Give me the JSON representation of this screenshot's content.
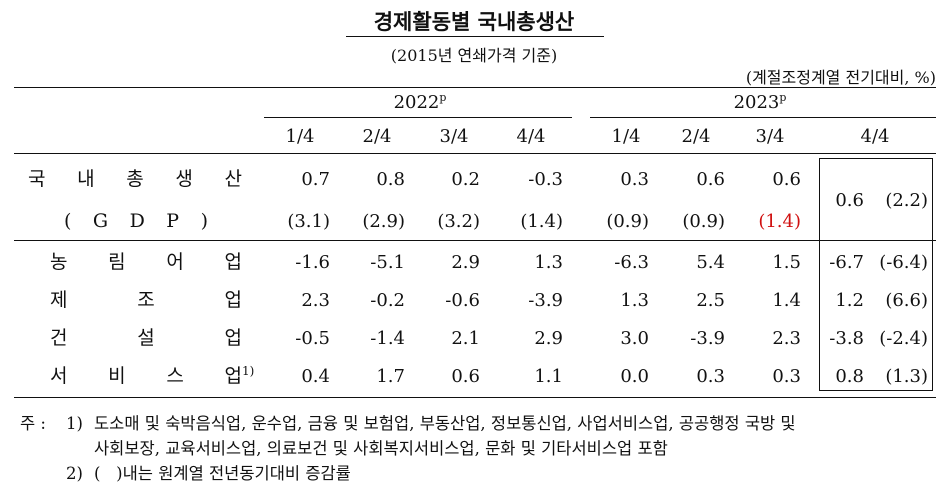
{
  "title": "경제활동별 국내총생산",
  "subtitle": "(2015년 연쇄가격 기준)",
  "unit": "(계절조정계열 전기대비, %)",
  "years": [
    {
      "label": "2022",
      "mark": "p"
    },
    {
      "label": "2023",
      "mark": "p"
    }
  ],
  "quarters": [
    "1/4",
    "2/4",
    "3/4",
    "4/4",
    "1/4",
    "2/4",
    "3/4",
    "4/4"
  ],
  "gdp": {
    "label_line1": [
      "국",
      "내",
      "총",
      "생",
      "산"
    ],
    "label_line2": [
      "(",
      "G",
      "D",
      "P",
      ")"
    ],
    "values": [
      "0.7",
      "0.8",
      "0.2",
      "-0.3",
      "0.3",
      "0.6",
      "0.6"
    ],
    "yoy": [
      "(3.1)",
      "(2.9)",
      "(3.2)",
      "(1.4)",
      "(0.9)",
      "(0.9)",
      "(1.4)"
    ],
    "latest_value": "0.6",
    "latest_yoy": "(2.2)"
  },
  "industries": [
    {
      "chars": [
        "농",
        "림",
        "어",
        "업"
      ],
      "sup": "",
      "values": [
        "-1.6",
        "-5.1",
        "2.9",
        "1.3",
        "-6.3",
        "5.4",
        "1.5"
      ],
      "latest_value": "-6.7",
      "latest_yoy": "(-6.4)"
    },
    {
      "chars": [
        "제",
        "조",
        "업"
      ],
      "sup": "",
      "values": [
        "2.3",
        "-0.2",
        "-0.6",
        "-3.9",
        "1.3",
        "2.5",
        "1.4"
      ],
      "latest_value": "1.2",
      "latest_yoy": "(6.6)"
    },
    {
      "chars": [
        "건",
        "설",
        "업"
      ],
      "sup": "",
      "values": [
        "-0.5",
        "-1.4",
        "2.1",
        "2.9",
        "3.0",
        "-3.9",
        "2.3"
      ],
      "latest_value": "-3.8",
      "latest_yoy": "(-2.4)"
    },
    {
      "chars": [
        "서",
        "비",
        "스",
        "업"
      ],
      "sup": "1)",
      "values": [
        "0.4",
        "1.7",
        "0.6",
        "1.1",
        "0.0",
        "0.3",
        "0.3"
      ],
      "latest_value": "0.8",
      "latest_yoy": "(1.3)"
    }
  ],
  "notes": {
    "prefix": "주 :",
    "n1_num": "1)",
    "n1_line1": "도소매 및 숙박음식업, 운수업, 금융 및 보험업, 부동산업, 정보통신업, 사업서비스업, 공공행정 국방 및",
    "n1_line2": "사회보장, 교육서비스업, 의료보건 및 사회복지서비스업, 문화 및 기타서비스업 포함",
    "n2_num": "2)",
    "n2_text": "(   )내는 원계열 전년동기대비 증감률"
  },
  "colors": {
    "highlight": "#d01010",
    "text": "#111111",
    "line": "#111111"
  }
}
